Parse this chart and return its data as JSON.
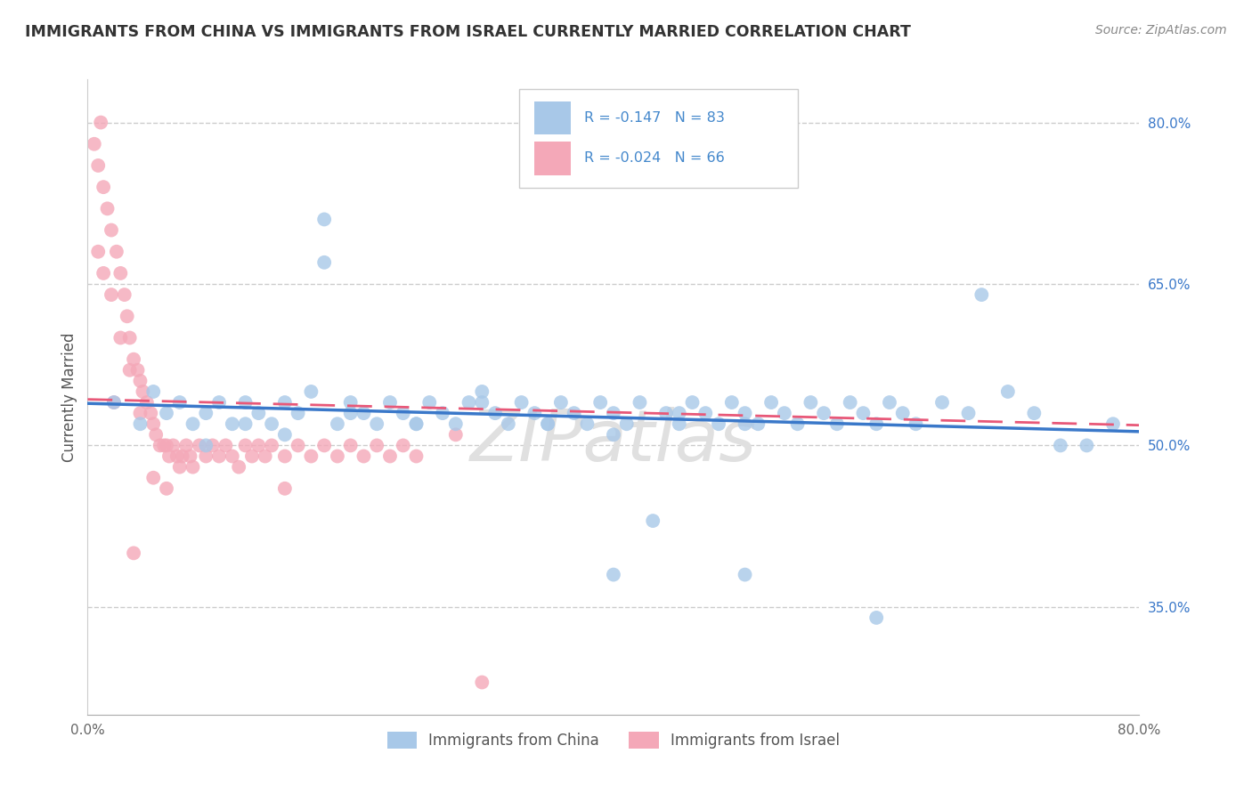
{
  "title": "IMMIGRANTS FROM CHINA VS IMMIGRANTS FROM ISRAEL CURRENTLY MARRIED CORRELATION CHART",
  "source": "Source: ZipAtlas.com",
  "ylabel": "Currently Married",
  "watermark": "ZIPatlas",
  "xmin": 0.0,
  "xmax": 0.8,
  "ymin": 0.25,
  "ymax": 0.84,
  "yticks": [
    0.35,
    0.5,
    0.65,
    0.8
  ],
  "ytick_labels": [
    "35.0%",
    "50.0%",
    "65.0%",
    "80.0%"
  ],
  "xticks": [
    0.0,
    0.1,
    0.2,
    0.3,
    0.4,
    0.5,
    0.6,
    0.7,
    0.8
  ],
  "xtick_labels": [
    "0.0%",
    "",
    "",
    "",
    "",
    "",
    "",
    "",
    "80.0%"
  ],
  "legend_r1": "R = -0.147",
  "legend_n1": "N = 83",
  "legend_r2": "R = -0.024",
  "legend_n2": "N = 66",
  "series1_color": "#a8c8e8",
  "series2_color": "#f4a8b8",
  "line1_color": "#3a78c9",
  "line2_color": "#e85878",
  "background_color": "#ffffff",
  "grid_color": "#cccccc",
  "title_color": "#333333",
  "source_color": "#888888",
  "watermark_color": "#e0e0e0",
  "legend_text_color": "#4488cc",
  "china_x": [
    0.02,
    0.04,
    0.05,
    0.06,
    0.07,
    0.08,
    0.09,
    0.1,
    0.11,
    0.12,
    0.13,
    0.14,
    0.15,
    0.16,
    0.17,
    0.18,
    0.19,
    0.2,
    0.21,
    0.22,
    0.23,
    0.24,
    0.25,
    0.26,
    0.27,
    0.28,
    0.29,
    0.3,
    0.31,
    0.32,
    0.33,
    0.34,
    0.35,
    0.36,
    0.37,
    0.38,
    0.39,
    0.4,
    0.41,
    0.42,
    0.43,
    0.44,
    0.45,
    0.46,
    0.47,
    0.48,
    0.49,
    0.5,
    0.51,
    0.52,
    0.53,
    0.54,
    0.55,
    0.56,
    0.57,
    0.58,
    0.59,
    0.6,
    0.61,
    0.62,
    0.63,
    0.65,
    0.67,
    0.68,
    0.7,
    0.72,
    0.74,
    0.76,
    0.78,
    0.09,
    0.12,
    0.15,
    0.2,
    0.25,
    0.3,
    0.35,
    0.4,
    0.45,
    0.5,
    0.18,
    0.4,
    0.5,
    0.6
  ],
  "china_y": [
    0.54,
    0.52,
    0.55,
    0.53,
    0.54,
    0.52,
    0.53,
    0.54,
    0.52,
    0.54,
    0.53,
    0.52,
    0.54,
    0.53,
    0.55,
    0.71,
    0.52,
    0.54,
    0.53,
    0.52,
    0.54,
    0.53,
    0.52,
    0.54,
    0.53,
    0.52,
    0.54,
    0.55,
    0.53,
    0.52,
    0.54,
    0.53,
    0.52,
    0.54,
    0.53,
    0.52,
    0.54,
    0.53,
    0.52,
    0.54,
    0.43,
    0.53,
    0.52,
    0.54,
    0.53,
    0.52,
    0.54,
    0.53,
    0.52,
    0.54,
    0.53,
    0.52,
    0.54,
    0.53,
    0.52,
    0.54,
    0.53,
    0.52,
    0.54,
    0.53,
    0.52,
    0.54,
    0.53,
    0.64,
    0.55,
    0.53,
    0.5,
    0.5,
    0.52,
    0.5,
    0.52,
    0.51,
    0.53,
    0.52,
    0.54,
    0.52,
    0.51,
    0.53,
    0.52,
    0.67,
    0.38,
    0.38,
    0.34
  ],
  "israel_x": [
    0.005,
    0.008,
    0.01,
    0.012,
    0.015,
    0.018,
    0.02,
    0.022,
    0.025,
    0.028,
    0.03,
    0.032,
    0.035,
    0.038,
    0.04,
    0.042,
    0.045,
    0.048,
    0.05,
    0.052,
    0.055,
    0.058,
    0.06,
    0.062,
    0.065,
    0.068,
    0.07,
    0.072,
    0.075,
    0.078,
    0.08,
    0.085,
    0.09,
    0.095,
    0.1,
    0.105,
    0.11,
    0.115,
    0.12,
    0.125,
    0.13,
    0.135,
    0.14,
    0.15,
    0.16,
    0.17,
    0.18,
    0.19,
    0.2,
    0.21,
    0.22,
    0.23,
    0.24,
    0.25,
    0.008,
    0.012,
    0.018,
    0.025,
    0.032,
    0.04,
    0.05,
    0.06,
    0.035,
    0.15,
    0.28,
    0.3
  ],
  "israel_y": [
    0.78,
    0.76,
    0.8,
    0.74,
    0.72,
    0.7,
    0.54,
    0.68,
    0.66,
    0.64,
    0.62,
    0.6,
    0.58,
    0.57,
    0.56,
    0.55,
    0.54,
    0.53,
    0.52,
    0.51,
    0.5,
    0.5,
    0.5,
    0.49,
    0.5,
    0.49,
    0.48,
    0.49,
    0.5,
    0.49,
    0.48,
    0.5,
    0.49,
    0.5,
    0.49,
    0.5,
    0.49,
    0.48,
    0.5,
    0.49,
    0.5,
    0.49,
    0.5,
    0.49,
    0.5,
    0.49,
    0.5,
    0.49,
    0.5,
    0.49,
    0.5,
    0.49,
    0.5,
    0.49,
    0.68,
    0.66,
    0.64,
    0.6,
    0.57,
    0.53,
    0.47,
    0.46,
    0.4,
    0.46,
    0.51,
    0.28
  ]
}
